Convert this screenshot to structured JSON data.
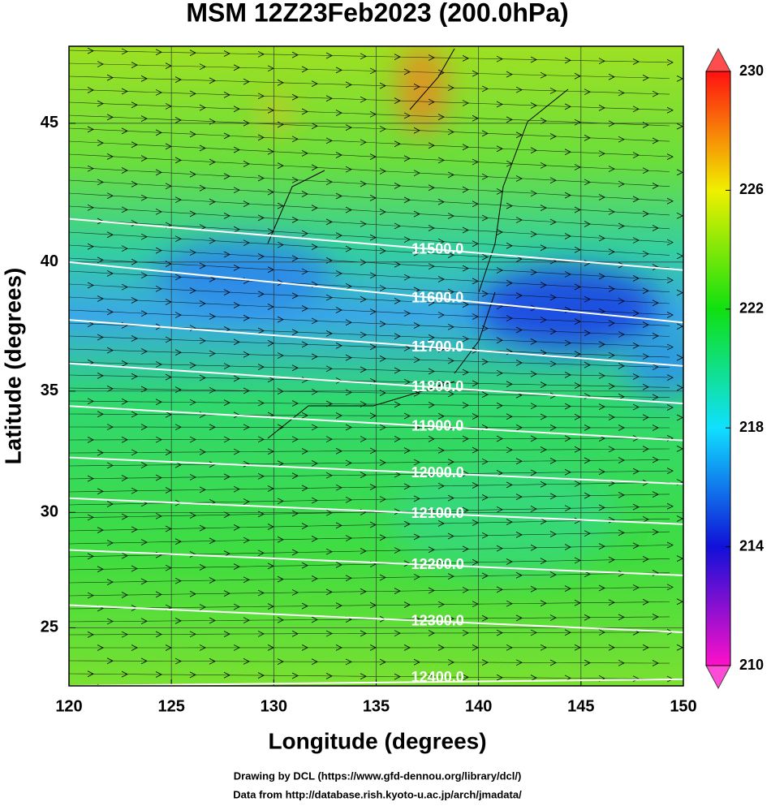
{
  "chart_data": {
    "type": "map",
    "title": "MSM 12Z23Feb2023 (200.0hPa)",
    "x_label": "Longitude (degrees)",
    "y_label": "Latitude  (degrees)",
    "xlim": [
      120,
      150
    ],
    "ylim": [
      22.4,
      47.6
    ],
    "yscale": "mercator",
    "xticks": [
      120,
      125,
      130,
      135,
      140,
      145,
      150
    ],
    "yticks": [
      25,
      30,
      35,
      40,
      45
    ],
    "grid": true,
    "colorbar": {
      "lim": [
        210,
        230
      ],
      "ticks": [
        210,
        214,
        218,
        222,
        226,
        230
      ],
      "colors": [
        "#ff10c8",
        "#1010d8",
        "#10e0ff",
        "#10e010",
        "#f0f000",
        "#ff1010"
      ]
    },
    "contour_lon": [
      120,
      150
    ],
    "contours": [
      {
        "value": 11500,
        "label": "11500.0",
        "lat": [
          41.6,
          39.7
        ]
      },
      {
        "value": 11600,
        "label": "11600.0",
        "lat": [
          40.0,
          37.7
        ]
      },
      {
        "value": 11700,
        "label": "11700.0",
        "lat": [
          37.8,
          36.0
        ]
      },
      {
        "value": 11800,
        "label": "11800.0",
        "lat": [
          36.1,
          34.5
        ]
      },
      {
        "value": 11900,
        "label": "11900.0",
        "lat": [
          34.4,
          33.0
        ]
      },
      {
        "value": 12000,
        "label": "12000.0",
        "lat": [
          32.3,
          31.2
        ]
      },
      {
        "value": 12100,
        "label": "12100.0",
        "lat": [
          30.6,
          29.5
        ]
      },
      {
        "value": 12200,
        "label": "12200.0",
        "lat": [
          28.4,
          27.3
        ]
      },
      {
        "value": 12300,
        "label": "12300.0",
        "lat": [
          26.0,
          24.8
        ]
      },
      {
        "value": 12400,
        "label": "12400.0",
        "lat": [
          22.4,
          22.7
        ]
      }
    ]
  },
  "credits": [
    "Drawing by DCL (https://www.gfd-dennou.org/library/dcl/)",
    "Data from http://database.rish.kyoto-u.ac.jp/arch/jmadata/"
  ]
}
